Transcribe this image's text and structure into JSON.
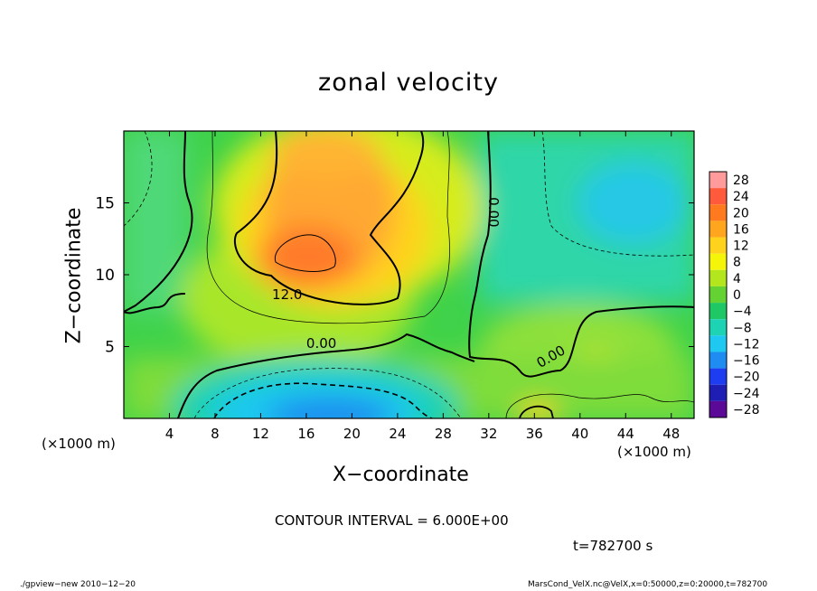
{
  "title": "zonal velocity",
  "xlabel": "X−coordinate",
  "ylabel": "Z−coordinate",
  "x_unit_left": "(×1000 m)",
  "x_unit_right": "(×1000 m)",
  "contour_interval": "CONTOUR INTERVAL = 6.000E+00",
  "time_label": "t=782700 s",
  "footer_left": "./gpview−new   2010−12−20",
  "footer_right": "MarsCond_VelX.nc@VelX,x=0:50000,z=0:20000,t=782700",
  "chart_data": {
    "type": "heatmap",
    "title": "zonal velocity",
    "xlabel": "X−coordinate",
    "ylabel": "Z−coordinate",
    "xlim": [
      0,
      50
    ],
    "ylim": [
      0,
      20
    ],
    "x_ticks": [
      4,
      8,
      12,
      16,
      20,
      24,
      28,
      32,
      36,
      40,
      44,
      48
    ],
    "y_ticks": [
      5,
      10,
      15
    ],
    "contour_labels": [
      {
        "text": "12.0",
        "x": 13,
        "z": 8.3
      },
      {
        "text": "0.00",
        "x": 16,
        "z": 4.9
      },
      {
        "text": "0.00",
        "x": 32,
        "z": 15.4
      },
      {
        "text": "0.00",
        "x": 36.5,
        "z": 3.5
      }
    ],
    "colorbar": {
      "levels": [
        28,
        24,
        20,
        16,
        12,
        8,
        4,
        0,
        -4,
        -8,
        -12,
        -16,
        -20,
        -24,
        -28
      ],
      "colors": [
        "#ff9b9b",
        "#ff5a3c",
        "#ff7a1e",
        "#ffa51e",
        "#ffd21e",
        "#f5f50a",
        "#b4e61e",
        "#64d232",
        "#1ec864",
        "#1ed2b4",
        "#1ec8f0",
        "#1e8cf0",
        "#1e3cf0",
        "#1e1eb4",
        "#5a0a96"
      ]
    },
    "grid": false
  }
}
